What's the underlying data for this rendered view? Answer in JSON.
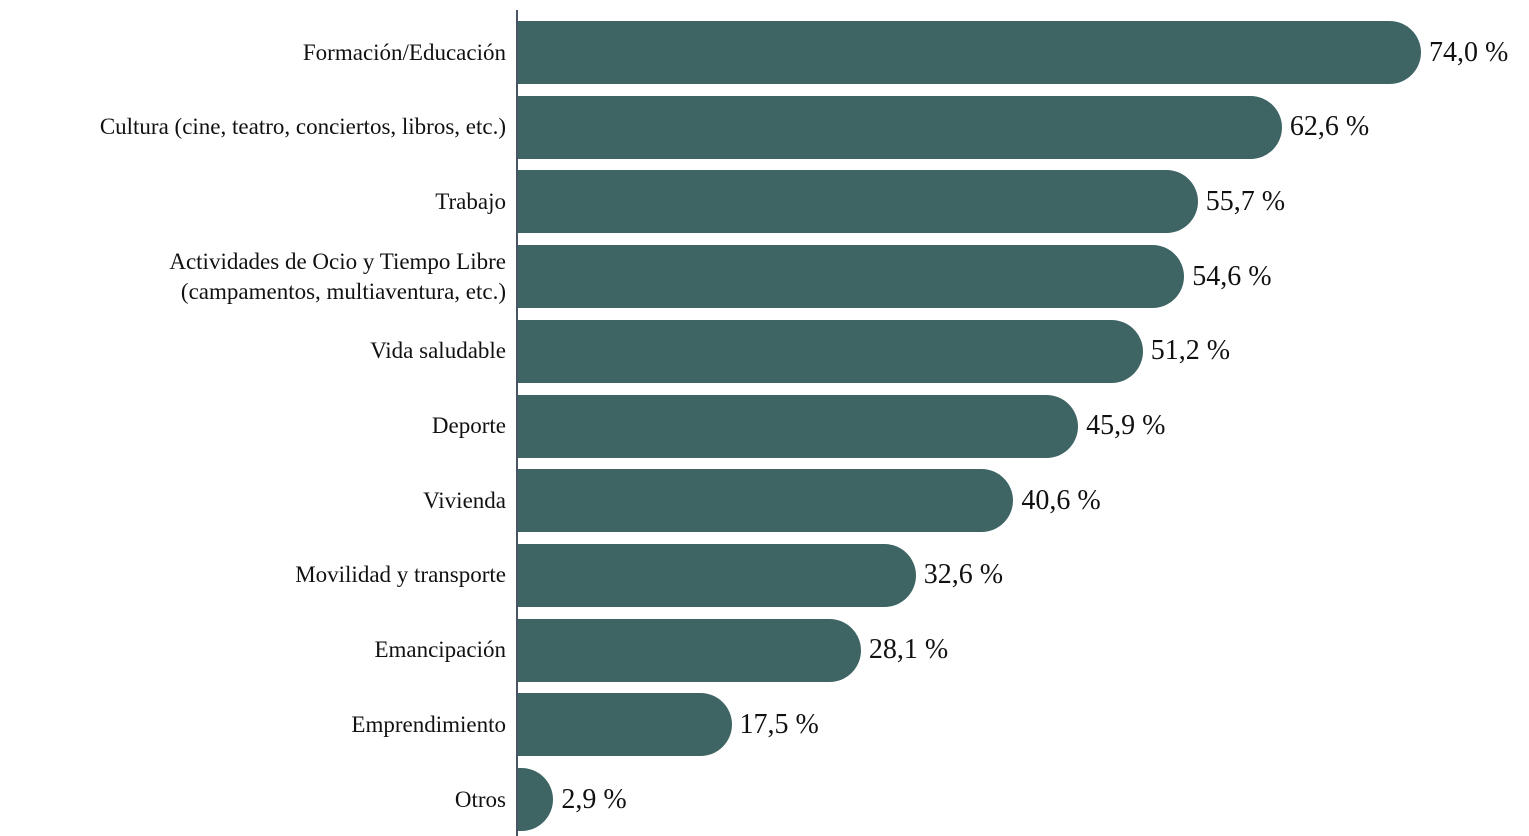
{
  "chart_data": {
    "type": "bar",
    "orientation": "horizontal",
    "color": "#3e6464",
    "categories": [
      "Formación/Educación",
      "Cultura (cine, teatro, conciertos, libros, etc.)",
      "Trabajo",
      "Actividades de Ocio y Tiempo Libre\n(campamentos, multiaventura, etc.)",
      "Vida saludable",
      "Deporte",
      "Vivienda",
      "Movilidad y transporte",
      "Emancipación",
      "Emprendimiento",
      "Otros"
    ],
    "values": [
      74.0,
      62.6,
      55.7,
      54.6,
      51.2,
      45.9,
      40.6,
      32.6,
      28.1,
      17.5,
      2.9
    ],
    "value_labels": [
      "74,0 %",
      "62,6 %",
      "55,7 %",
      "54,6 %",
      "51,2 %",
      "45,9 %",
      "40,6 %",
      "32,6 %",
      "28,1 %",
      "17,5 %",
      "2,9 %"
    ]
  }
}
